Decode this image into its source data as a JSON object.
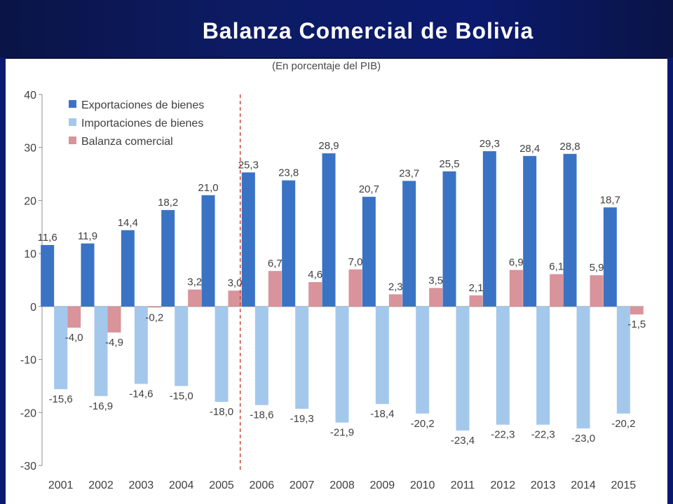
{
  "header": {
    "title": "Balanza Comercial de Bolivia"
  },
  "colors": {
    "exports": "#3a73c4",
    "imports": "#a4c8ec",
    "balance": "#d9939a",
    "divider": "#c94a3a",
    "axis": "#8c8c8c",
    "label": "#404040"
  },
  "chart_data": {
    "type": "bar",
    "title": "",
    "subtitle": "(En porcentaje del PIB)",
    "xlabel": "",
    "ylabel": "",
    "ylim": [
      -30,
      40
    ],
    "yticks": [
      "40",
      "30",
      "20",
      "10",
      "0",
      "-10",
      "-20",
      "-30"
    ],
    "ytick_values": [
      40,
      30,
      20,
      10,
      0,
      -10,
      -20,
      -30
    ],
    "categories": [
      "2001",
      "2002",
      "2003",
      "2004",
      "2005",
      "2006",
      "2007",
      "2008",
      "2009",
      "2010",
      "2011",
      "2012",
      "2013",
      "2014",
      "2015"
    ],
    "series": [
      {
        "name": "Exportaciones de bienes",
        "values": [
          11.6,
          11.9,
          14.4,
          18.2,
          21.0,
          25.3,
          23.8,
          28.9,
          20.7,
          23.7,
          25.5,
          29.3,
          28.4,
          28.8,
          18.7
        ],
        "labels": [
          "11,6",
          "11,9",
          "14,4",
          "18,2",
          "21,0",
          "25,3",
          "23,8",
          "28,9",
          "20,7",
          "23,7",
          "25,5",
          "29,3",
          "28,4",
          "28,8",
          "18,7"
        ]
      },
      {
        "name": "Importaciones de bienes",
        "values": [
          -15.6,
          -16.9,
          -14.6,
          -15.0,
          -18.0,
          -18.6,
          -19.3,
          -21.9,
          -18.4,
          -20.2,
          -23.4,
          -22.3,
          -22.3,
          -23.0,
          -20.2
        ],
        "labels": [
          "-15,6",
          "-16,9",
          "-14,6",
          "-15,0",
          "-18,0",
          "-18,6",
          "-19,3",
          "-21,9",
          "-18,4",
          "-20,2",
          "-23,4",
          "-22,3",
          "-22,3",
          "-23,0",
          "-20,2"
        ]
      },
      {
        "name": "Balanza comercial",
        "values": [
          -4.0,
          -4.9,
          -0.2,
          3.2,
          3.0,
          6.7,
          4.6,
          7.0,
          2.3,
          3.5,
          2.1,
          6.9,
          6.1,
          5.9,
          -1.5
        ],
        "labels": [
          "-4,0",
          "-4,9",
          "-0,2",
          "3,2",
          "3,0",
          "6,7",
          "4,6",
          "7,0",
          "2,3",
          "3,5",
          "2,1",
          "6,9",
          "6,1",
          "5,9",
          "-1,5"
        ]
      }
    ],
    "divider_between": [
      "2005",
      "2006"
    ],
    "grid": false,
    "legend_position": "top-left"
  }
}
